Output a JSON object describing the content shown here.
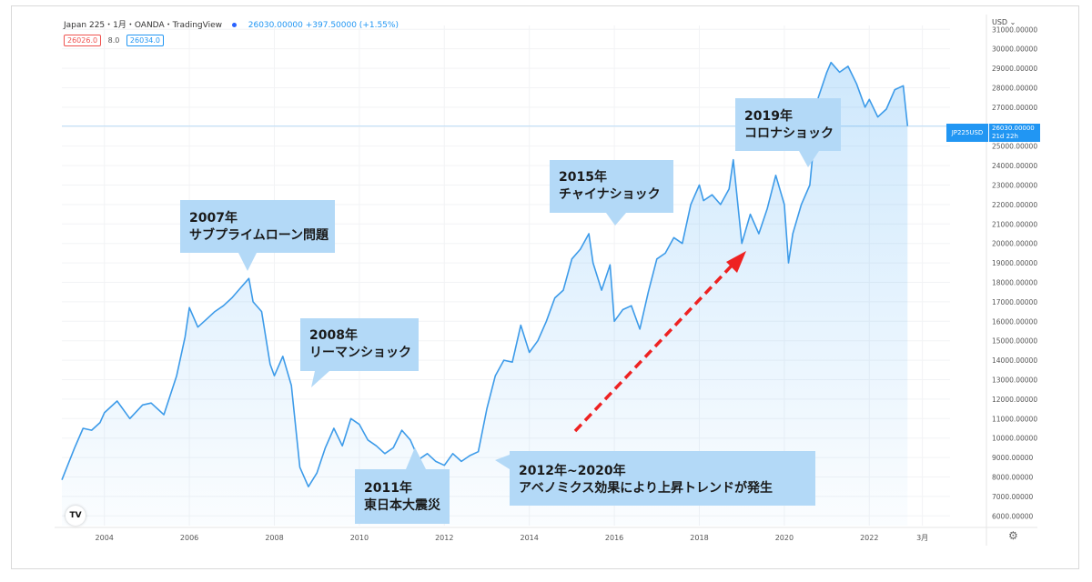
{
  "header": {
    "title": "Japan 225・1月・OANDA・TradingView",
    "price": "26030.00000 +397.50000 (+1.55%)",
    "bid": "26026.0",
    "spread": "8.0",
    "ask": "26034.0",
    "currency": "USD",
    "settings_icon": "gear-icon",
    "logo_text": "TV"
  },
  "price_tag": {
    "symbol": "JP225USD",
    "value": "26030.00000",
    "countdown": "21d 22h"
  },
  "annotations": [
    {
      "line1": "2007年",
      "line2": "サブプライムローン問題"
    },
    {
      "line1": "2008年",
      "line2": "リーマンショック"
    },
    {
      "line1": "2011年",
      "line2": "東日本大震災"
    },
    {
      "line1": "2012年~2020年",
      "line2": "アベノミクス効果により上昇トレンドが発生"
    },
    {
      "line1": "2015年",
      "line2": "チャイナショック"
    },
    {
      "line1": "2019年",
      "line2": "コロナショック"
    }
  ],
  "chart_data": {
    "type": "area",
    "ylim": [
      5500,
      31200
    ],
    "xlim": [
      2003.0,
      2023.9
    ],
    "yticks": [
      6000,
      7000,
      8000,
      9000,
      10000,
      11000,
      12000,
      13000,
      14000,
      15000,
      16000,
      17000,
      18000,
      19000,
      20000,
      21000,
      22000,
      23000,
      24000,
      25000,
      26000,
      27000,
      28000,
      29000,
      30000,
      31000
    ],
    "ytick_labels": [
      "6000.00000",
      "7000.00000",
      "8000.00000",
      "9000.00000",
      "10000.00000",
      "11000.00000",
      "12000.00000",
      "13000.00000",
      "14000.00000",
      "15000.00000",
      "16000.00000",
      "17000.00000",
      "18000.00000",
      "19000.00000",
      "20000.00000",
      "21000.00000",
      "22000.00000",
      "23000.00000",
      "24000.00000",
      "25000.00000",
      "26000.00000",
      "27000.00000",
      "28000.00000",
      "29000.00000",
      "30000.00000",
      "31000.00000"
    ],
    "xticks": [
      2004,
      2006,
      2008,
      2010,
      2012,
      2014,
      2016,
      2018,
      2020,
      2022,
      2023.25
    ],
    "xtick_labels": [
      "2004",
      "2006",
      "2008",
      "2010",
      "2012",
      "2014",
      "2016",
      "2018",
      "2020",
      "2022",
      "3月"
    ],
    "current_price": 26030,
    "series": [
      {
        "x": [
          2003.0,
          2003.3,
          2003.5,
          2003.7,
          2003.9,
          2004.0,
          2004.3,
          2004.6,
          2004.9,
          2005.1,
          2005.4,
          2005.7,
          2005.9,
          2006.0,
          2006.2,
          2006.4,
          2006.6,
          2006.8,
          2007.0,
          2007.2,
          2007.4,
          2007.5,
          2007.7,
          2007.9,
          2008.0,
          2008.2,
          2008.4,
          2008.6,
          2008.8,
          2009.0,
          2009.2,
          2009.4,
          2009.6,
          2009.8,
          2010.0,
          2010.2,
          2010.4,
          2010.6,
          2010.8,
          2011.0,
          2011.2,
          2011.4,
          2011.6,
          2011.8,
          2012.0,
          2012.2,
          2012.4,
          2012.6,
          2012.8,
          2013.0,
          2013.2,
          2013.4,
          2013.6,
          2013.8,
          2014.0,
          2014.2,
          2014.4,
          2014.6,
          2014.8,
          2015.0,
          2015.2,
          2015.4,
          2015.5,
          2015.7,
          2015.9,
          2016.0,
          2016.2,
          2016.4,
          2016.6,
          2016.8,
          2017.0,
          2017.2,
          2017.4,
          2017.6,
          2017.8,
          2018.0,
          2018.1,
          2018.3,
          2018.5,
          2018.7,
          2018.8,
          2019.0,
          2019.2,
          2019.4,
          2019.6,
          2019.8,
          2020.0,
          2020.1,
          2020.2,
          2020.4,
          2020.6,
          2020.8,
          2021.0,
          2021.1,
          2021.3,
          2021.5,
          2021.7,
          2021.9,
          2022.0,
          2022.2,
          2022.4,
          2022.6,
          2022.8,
          2022.9
        ],
        "y": [
          7850,
          9500,
          10500,
          10400,
          10800,
          11300,
          11900,
          11000,
          11700,
          11800,
          11200,
          13200,
          15200,
          16700,
          15700,
          16100,
          16500,
          16800,
          17200,
          17700,
          18200,
          17000,
          16500,
          13800,
          13200,
          14200,
          12700,
          8500,
          7500,
          8200,
          9500,
          10500,
          9600,
          11000,
          10700,
          9900,
          9600,
          9200,
          9500,
          10400,
          9900,
          8900,
          9200,
          8800,
          8600,
          9200,
          8800,
          9100,
          9300,
          11500,
          13200,
          14000,
          13900,
          15800,
          14400,
          15000,
          16000,
          17200,
          17600,
          19200,
          19700,
          20500,
          19000,
          17600,
          18900,
          16000,
          16600,
          16800,
          15600,
          17500,
          19200,
          19500,
          20300,
          20000,
          22000,
          23000,
          22200,
          22500,
          22000,
          22800,
          24300,
          20000,
          21500,
          20500,
          21800,
          23500,
          22000,
          19000,
          20500,
          22000,
          23000,
          27500,
          28800,
          29300,
          28800,
          29100,
          28200,
          27000,
          27400,
          26500,
          26900,
          27900,
          28100,
          26030
        ]
      }
    ]
  }
}
